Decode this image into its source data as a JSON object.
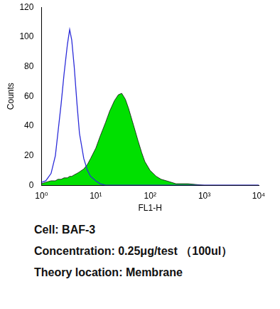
{
  "chart_data": {
    "type": "line",
    "x_label": "FL1-H",
    "y_label": "Counts",
    "log": "x",
    "grid": false,
    "xlim": [
      1,
      10000
    ],
    "xticks": [
      {
        "value": 1,
        "label": "10⁰"
      },
      {
        "value": 10,
        "label": "10¹"
      },
      {
        "value": 100,
        "label": "10²"
      },
      {
        "value": 1000,
        "label": "10³"
      },
      {
        "value": 10000,
        "label": "10⁴"
      }
    ],
    "ylim": [
      0,
      120
    ],
    "yticks": [
      0,
      20,
      40,
      60,
      80,
      100,
      120
    ],
    "x": [
      1,
      1.2,
      1.5,
      1.8,
      2,
      2.3,
      2.6,
      3,
      3.3,
      3.6,
      4,
      4.5,
      5,
      6,
      7,
      8,
      10,
      12,
      15,
      18,
      22,
      26,
      30,
      35,
      40,
      50,
      60,
      70,
      80,
      100,
      130,
      160,
      200,
      300,
      500,
      1000,
      10000
    ],
    "series": [
      {
        "type": "line",
        "color": "#2b2bd9",
        "values": [
          2,
          3,
          8,
          20,
          35,
          55,
          75,
          95,
          105,
          98,
          80,
          55,
          35,
          18,
          10,
          6,
          3,
          1,
          0,
          0,
          0,
          0,
          0,
          0,
          0,
          0,
          0,
          0,
          0,
          0,
          0,
          0,
          0,
          0,
          0,
          0,
          0
        ]
      },
      {
        "type": "area",
        "color": "#00e000",
        "values": [
          1,
          2,
          3,
          3,
          4,
          4,
          5,
          5,
          6,
          6,
          7,
          8,
          9,
          11,
          14,
          18,
          25,
          33,
          42,
          50,
          57,
          61,
          62,
          58,
          52,
          40,
          30,
          22,
          16,
          10,
          6,
          4,
          3,
          1,
          1,
          0,
          0
        ]
      }
    ],
    "annotations": [
      "Cell: BAF-3",
      "Concentration: 0.25μg/test （100ul）",
      "Theory location: Membrane"
    ]
  }
}
